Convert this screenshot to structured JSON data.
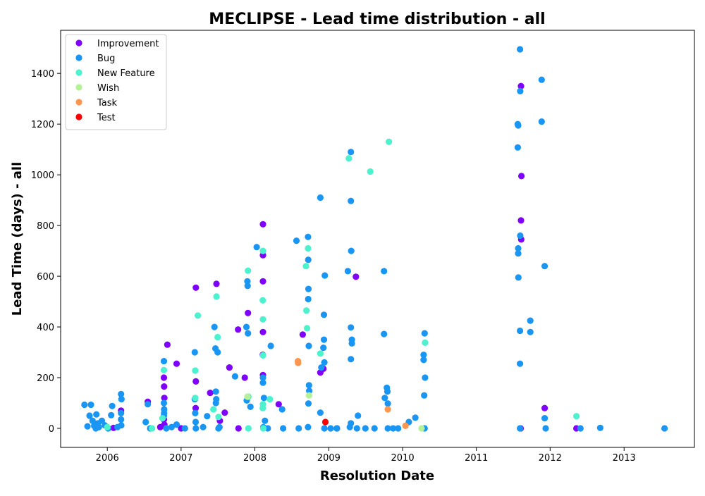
{
  "chart_data": {
    "type": "scatter",
    "title": "MECLIPSE - Lead time distribution - all",
    "xlabel": "Resolution Date",
    "ylabel": "Lead Time (days) - all",
    "xlim": [
      "2005-05-15",
      "2013-12-15"
    ],
    "ylim": [
      -75,
      1570
    ],
    "x_ticks": [
      "2006",
      "2007",
      "2008",
      "2009",
      "2010",
      "2011",
      "2012",
      "2013"
    ],
    "y_ticks": [
      0,
      200,
      400,
      600,
      800,
      1000,
      1200,
      1400
    ],
    "grid": false,
    "legend_position": "top-left",
    "series": [
      {
        "name": "Improvement",
        "color": "#8000ff",
        "points": [
          [
            "2006-02-01",
            2
          ],
          [
            "2006-03-10",
            70
          ],
          [
            "2006-07-20",
            105
          ],
          [
            "2006-09-20",
            5
          ],
          [
            "2006-10-08",
            200
          ],
          [
            "2006-10-09",
            165
          ],
          [
            "2006-10-10",
            120
          ],
          [
            "2006-10-08",
            35
          ],
          [
            "2006-10-10",
            15
          ],
          [
            "2006-10-25",
            330
          ],
          [
            "2006-12-10",
            255
          ],
          [
            "2007-01-01",
            0
          ],
          [
            "2007-03-15",
            555
          ],
          [
            "2007-03-15",
            185
          ],
          [
            "2007-03-14",
            80
          ],
          [
            "2007-05-25",
            140
          ],
          [
            "2007-06-25",
            570
          ],
          [
            "2007-07-12",
            30
          ],
          [
            "2007-08-05",
            62
          ],
          [
            "2007-08-28",
            240
          ],
          [
            "2007-10-10",
            390
          ],
          [
            "2007-10-12",
            0
          ],
          [
            "2007-11-12",
            200
          ],
          [
            "2007-11-28",
            455
          ],
          [
            "2008-02-10",
            805
          ],
          [
            "2008-02-10",
            683
          ],
          [
            "2008-02-10",
            580
          ],
          [
            "2008-02-10",
            380
          ],
          [
            "2008-02-09",
            290
          ],
          [
            "2008-02-10",
            210
          ],
          [
            "2008-04-28",
            95
          ],
          [
            "2008-08-25",
            370
          ],
          [
            "2008-11-20",
            220
          ],
          [
            "2008-12-05",
            235
          ],
          [
            "2009-02-10",
            0
          ],
          [
            "2009-05-15",
            598
          ],
          [
            "2011-08-08",
            0
          ],
          [
            "2011-08-10",
            1350
          ],
          [
            "2011-08-12",
            995
          ],
          [
            "2011-08-10",
            820
          ],
          [
            "2011-08-11",
            745
          ],
          [
            "2011-12-05",
            80
          ],
          [
            "2012-05-10",
            0
          ]
        ]
      },
      {
        "name": "Bug",
        "color": "#1996f3",
        "points": [
          [
            "2005-09-10",
            93
          ],
          [
            "2005-09-25",
            8
          ],
          [
            "2005-10-05",
            50
          ],
          [
            "2005-10-12",
            93
          ],
          [
            "2005-10-20",
            30
          ],
          [
            "2005-10-28",
            10
          ],
          [
            "2005-11-05",
            0
          ],
          [
            "2005-11-08",
            55
          ],
          [
            "2005-11-15",
            20
          ],
          [
            "2005-11-20",
            5
          ],
          [
            "2005-12-05",
            30
          ],
          [
            "2005-12-20",
            12
          ],
          [
            "2006-01-05",
            0
          ],
          [
            "2006-01-20",
            52
          ],
          [
            "2006-01-25",
            88
          ],
          [
            "2006-02-20",
            5
          ],
          [
            "2006-03-10",
            135
          ],
          [
            "2006-03-12",
            115
          ],
          [
            "2006-03-10",
            60
          ],
          [
            "2006-03-10",
            35
          ],
          [
            "2006-03-11",
            12
          ],
          [
            "2006-07-10",
            25
          ],
          [
            "2006-07-20",
            95
          ],
          [
            "2006-08-01",
            0
          ],
          [
            "2006-10-08",
            265
          ],
          [
            "2006-10-08",
            100
          ],
          [
            "2006-10-09",
            75
          ],
          [
            "2006-10-09",
            60
          ],
          [
            "2006-10-08",
            50
          ],
          [
            "2006-10-20",
            0
          ],
          [
            "2006-11-15",
            5
          ],
          [
            "2006-12-10",
            15
          ],
          [
            "2007-01-20",
            0
          ],
          [
            "2007-03-10",
            300
          ],
          [
            "2007-03-10",
            115
          ],
          [
            "2007-03-12",
            60
          ],
          [
            "2007-03-14",
            25
          ],
          [
            "2007-03-15",
            0
          ],
          [
            "2007-04-20",
            5
          ],
          [
            "2007-05-10",
            48
          ],
          [
            "2007-06-15",
            400
          ],
          [
            "2007-06-20",
            315
          ],
          [
            "2007-06-22",
            145
          ],
          [
            "2007-06-24",
            115
          ],
          [
            "2007-06-22",
            100
          ],
          [
            "2007-07-01",
            300
          ],
          [
            "2007-07-05",
            0
          ],
          [
            "2007-07-10",
            5
          ],
          [
            "2007-09-25",
            205
          ],
          [
            "2007-11-20",
            400
          ],
          [
            "2007-11-22",
            110
          ],
          [
            "2007-11-25",
            580
          ],
          [
            "2007-11-26",
            562
          ],
          [
            "2007-11-28",
            375
          ],
          [
            "2007-12-10",
            85
          ],
          [
            "2008-01-10",
            715
          ],
          [
            "2008-02-10",
            200
          ],
          [
            "2008-02-10",
            180
          ],
          [
            "2008-02-15",
            120
          ],
          [
            "2008-02-20",
            30
          ],
          [
            "2008-02-12",
            5
          ],
          [
            "2008-03-05",
            0
          ],
          [
            "2008-03-20",
            325
          ],
          [
            "2008-05-15",
            75
          ],
          [
            "2008-05-20",
            0
          ],
          [
            "2008-07-25",
            740
          ],
          [
            "2008-08-05",
            0
          ],
          [
            "2008-09-20",
            755
          ],
          [
            "2008-09-21",
            665
          ],
          [
            "2008-09-22",
            550
          ],
          [
            "2008-09-21",
            510
          ],
          [
            "2008-09-24",
            325
          ],
          [
            "2008-09-25",
            170
          ],
          [
            "2008-09-26",
            148
          ],
          [
            "2008-09-22",
            98
          ],
          [
            "2008-09-20",
            5
          ],
          [
            "2008-11-20",
            910
          ],
          [
            "2008-11-20",
            62
          ],
          [
            "2008-11-25",
            240
          ],
          [
            "2008-12-05",
            318
          ],
          [
            "2008-12-08",
            350
          ],
          [
            "2008-12-08",
            448
          ],
          [
            "2008-12-12",
            603
          ],
          [
            "2008-12-10",
            260
          ],
          [
            "2008-12-10",
            0
          ],
          [
            "2009-01-10",
            0
          ],
          [
            "2009-02-10",
            0
          ],
          [
            "2009-04-05",
            620
          ],
          [
            "2009-04-20",
            1090
          ],
          [
            "2009-04-20",
            897
          ],
          [
            "2009-04-22",
            700
          ],
          [
            "2009-04-20",
            398
          ],
          [
            "2009-04-25",
            350
          ],
          [
            "2009-04-25",
            335
          ],
          [
            "2009-04-20",
            273
          ],
          [
            "2009-04-20",
            20
          ],
          [
            "2009-04-15",
            5
          ],
          [
            "2009-05-25",
            50
          ],
          [
            "2009-05-20",
            0
          ],
          [
            "2009-07-01",
            0
          ],
          [
            "2009-08-15",
            0
          ],
          [
            "2009-10-01",
            620
          ],
          [
            "2009-10-01",
            372
          ],
          [
            "2009-10-05",
            120
          ],
          [
            "2009-10-15",
            160
          ],
          [
            "2009-10-18",
            145
          ],
          [
            "2009-10-20",
            98
          ],
          [
            "2009-10-20",
            0
          ],
          [
            "2009-11-15",
            0
          ],
          [
            "2009-12-10",
            0
          ],
          [
            "2010-02-01",
            25
          ],
          [
            "2010-03-05",
            42
          ],
          [
            "2010-04-15",
            290
          ],
          [
            "2010-04-15",
            270
          ],
          [
            "2010-04-18",
            130
          ],
          [
            "2010-04-20",
            375
          ],
          [
            "2010-04-22",
            200
          ],
          [
            "2010-04-20",
            0
          ],
          [
            "2011-07-25",
            1108
          ],
          [
            "2011-07-25",
            1200
          ],
          [
            "2011-07-27",
            1195
          ],
          [
            "2011-08-05",
            1495
          ],
          [
            "2011-08-06",
            1330
          ],
          [
            "2011-08-06",
            760
          ],
          [
            "2011-07-27",
            710
          ],
          [
            "2011-07-27",
            690
          ],
          [
            "2011-07-28",
            595
          ],
          [
            "2011-08-05",
            385
          ],
          [
            "2011-08-05",
            255
          ],
          [
            "2011-08-05",
            0
          ],
          [
            "2011-09-25",
            425
          ],
          [
            "2011-09-25",
            380
          ],
          [
            "2011-11-20",
            1375
          ],
          [
            "2011-11-20",
            1210
          ],
          [
            "2011-12-05",
            640
          ],
          [
            "2011-12-05",
            40
          ],
          [
            "2011-12-10",
            0
          ],
          [
            "2012-05-30",
            0
          ],
          [
            "2012-09-05",
            2
          ],
          [
            "2013-07-20",
            0
          ]
        ]
      },
      {
        "name": "New Feature",
        "color": "#4cf2ce",
        "points": [
          [
            "2006-01-01",
            5
          ],
          [
            "2006-08-10",
            0
          ],
          [
            "2006-10-01",
            40
          ],
          [
            "2006-10-08",
            230
          ],
          [
            "2007-03-12",
            228
          ],
          [
            "2007-03-12",
            120
          ],
          [
            "2007-03-25",
            445
          ],
          [
            "2007-06-10",
            75
          ],
          [
            "2007-06-25",
            520
          ],
          [
            "2007-07-01",
            360
          ],
          [
            "2007-07-05",
            45
          ],
          [
            "2007-11-28",
            622
          ],
          [
            "2007-11-30",
            125
          ],
          [
            "2007-11-30",
            0
          ],
          [
            "2008-02-10",
            700
          ],
          [
            "2008-02-09",
            505
          ],
          [
            "2008-02-10",
            430
          ],
          [
            "2008-02-10",
            288
          ],
          [
            "2008-02-10",
            95
          ],
          [
            "2008-02-09",
            80
          ],
          [
            "2008-02-12",
            0
          ],
          [
            "2008-03-15",
            115
          ],
          [
            "2008-09-10",
            640
          ],
          [
            "2008-09-20",
            710
          ],
          [
            "2008-09-12",
            465
          ],
          [
            "2008-09-15",
            395
          ],
          [
            "2008-11-20",
            295
          ],
          [
            "2009-04-10",
            1065
          ],
          [
            "2009-07-25",
            1013
          ],
          [
            "2009-10-25",
            1130
          ],
          [
            "2010-04-22",
            338
          ],
          [
            "2012-05-10",
            48
          ]
        ]
      },
      {
        "name": "Wish",
        "color": "#b3f295",
        "points": [
          [
            "2007-11-25",
            125
          ],
          [
            "2008-09-25",
            130
          ],
          [
            "2010-04-05",
            0
          ]
        ]
      },
      {
        "name": "Task",
        "color": "#ff964f",
        "points": [
          [
            "2008-08-01",
            265
          ],
          [
            "2008-08-02",
            258
          ],
          [
            "2009-10-20",
            75
          ],
          [
            "2010-01-15",
            10
          ]
        ]
      },
      {
        "name": "Test",
        "color": "#ff0000",
        "points": [
          [
            "2008-12-15",
            25
          ]
        ]
      }
    ]
  }
}
